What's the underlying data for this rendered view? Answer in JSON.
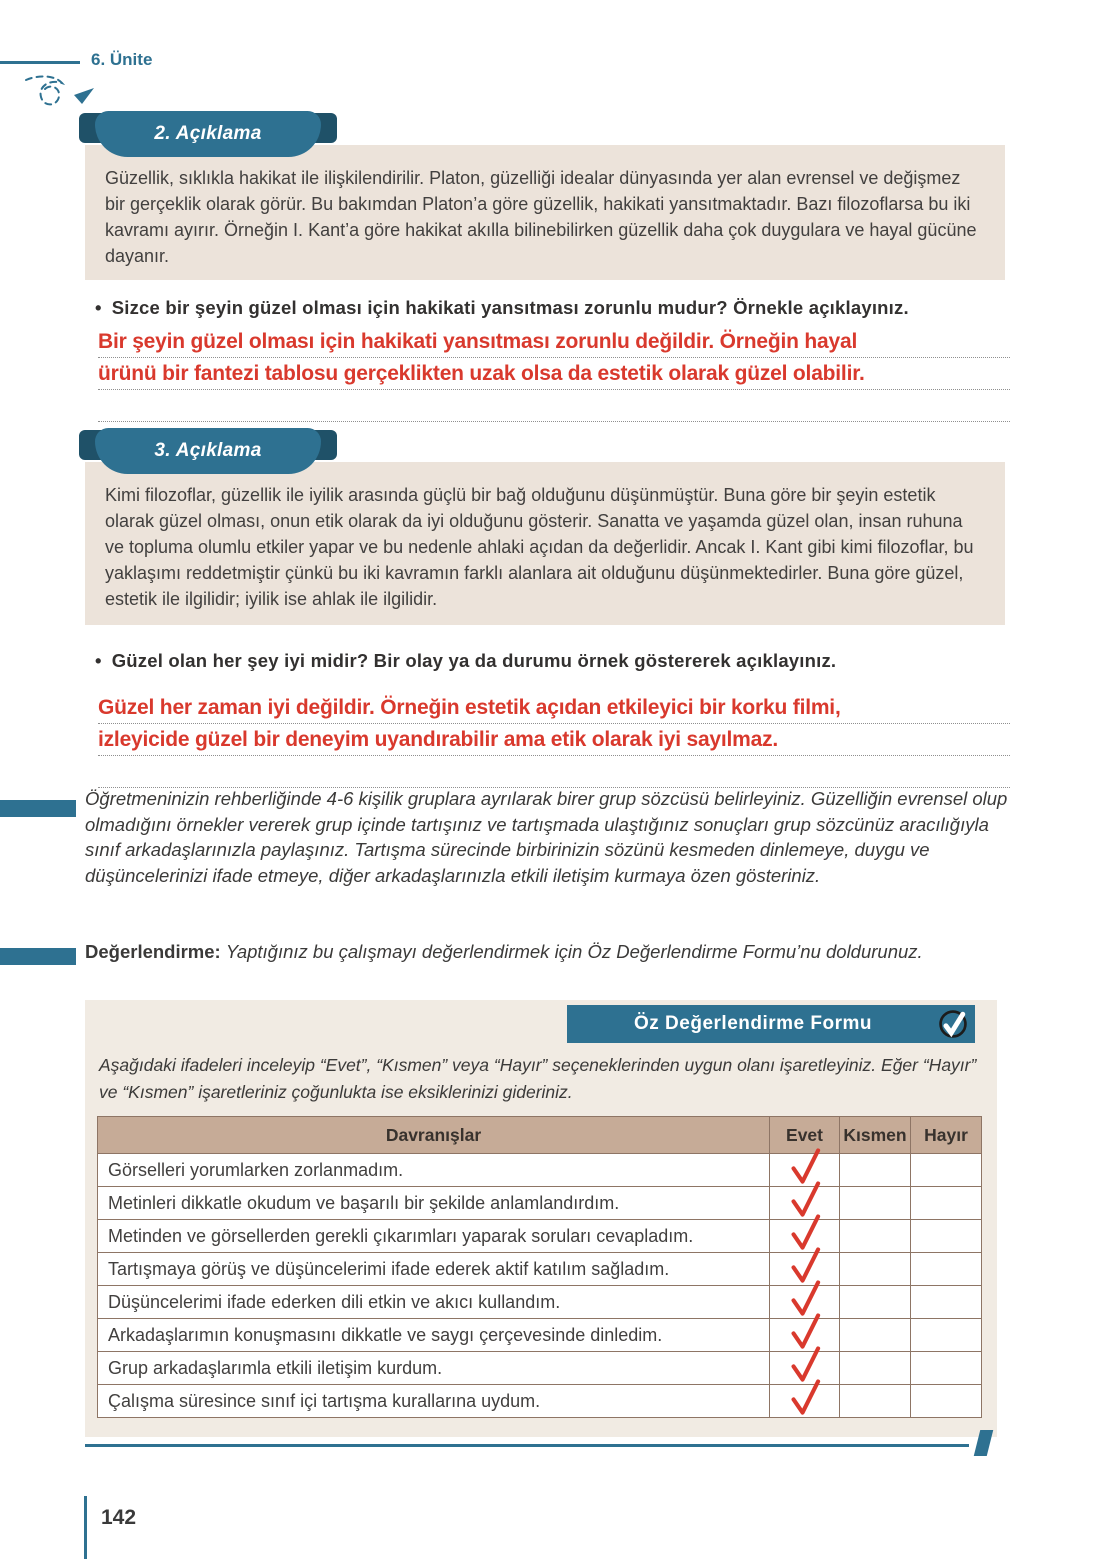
{
  "header": {
    "unit_label": "6. Ünite"
  },
  "colors": {
    "teal": "#2e7191",
    "teal_dark": "#1f5168",
    "box_beige": "#ece3da",
    "form_beige": "#f1ebe3",
    "table_header_bg": "#c6ab97",
    "table_border": "#8e7565",
    "answer_red": "#d9392d"
  },
  "icons": {
    "header_arrow": "doodle-arrow-icon",
    "form_banner": "check-circle-icon",
    "table_mark": "checkmark-icon"
  },
  "sections": [
    {
      "badge": "2. Açıklama",
      "paragraph": "Güzellik, sıklıkla hakikat ile ilişkilendirilir. Platon, güzelliği idealar dünyasında yer alan evrensel ve değişmez bir gerçeklik olarak görür. Bu bakımdan Platon’a göre güzellik, hakikati yansıtmaktadır. Bazı filozoflarsa bu iki kavramı ayırır. Örneğin I. Kant’a göre hakikat akılla bilinebilirken güzellik daha çok duygulara ve hayal gücüne dayanır.",
      "question": "Sizce bir şeyin güzel olması için hakikati yansıtması zorunlu mudur? Örnekle açıklayınız.",
      "answer_lines": [
        "Bir şeyin güzel olması için hakikati yansıtması zorunlu değildir. Örneğin hayal",
        "ürünü bir fantezi tablosu gerçeklikten uzak olsa da estetik olarak güzel olabilir."
      ]
    },
    {
      "badge": "3. Açıklama",
      "paragraph": "Kimi filozoflar, güzellik ile iyilik arasında güçlü bir bağ olduğunu düşünmüştür. Buna göre bir şeyin estetik olarak güzel olması, onun etik olarak da iyi olduğunu gösterir. Sanatta ve yaşamda güzel olan, insan ruhuna ve topluma olumlu etkiler yapar ve bu nedenle ahlaki açıdan da değerlidir. Ancak I. Kant gibi kimi filozoflar, bu yaklaşımı reddetmiştir çünkü bu iki kavramın farklı alanlara ait olduğunu düşünmektedirler. Buna göre güzel, estetik ile ilgilidir; iyilik ise ahlak ile ilgilidir.",
      "question": "Güzel olan her şey iyi midir? Bir olay ya da durumu örnek göstererek açıklayınız.",
      "answer_lines": [
        "Güzel her zaman iyi değildir. Örneğin estetik açıdan etkileyici bir korku filmi,",
        "izleyicide güzel bir deneyim uyandırabilir ama etik olarak iyi sayılmaz."
      ]
    }
  ],
  "group_activity": {
    "text": "Öğretmeninizin rehberliğinde 4-6 kişilik gruplara ayrılarak birer grup sözcüsü belirleyiniz. Güzelliğin evrensel olup olmadığını örnekler vererek grup içinde tartışınız ve tartışmada ulaştığınız sonuçları grup sözcünüz aracılığıyla sınıf arkadaşlarınızla paylaşınız. Tartışma sürecinde birbirinizin sözünü kesmeden dinlemeye, duygu ve düşüncelerinizi ifade etmeye, diğer arkadaşlarınızla etkili iletişim kurmaya özen gösteriniz."
  },
  "evaluation": {
    "label": "Değerlendirme:",
    "text": "Yaptığınız bu çalışmayı değerlendirmek için Öz Değerlendirme Formu’nu doldurunuz."
  },
  "form": {
    "title": "Öz Değerlendirme Formu",
    "instructions": "Aşağıdaki ifadeleri inceleyip “Evet”, “Kısmen” veya “Hayır” seçeneklerinden uygun olanı işaretleyiniz. Eğer “Hayır” ve “Kısmen” işaretleriniz çoğunlukta ise eksiklerinizi gideriniz.",
    "table": {
      "headers": [
        "Davranışlar",
        "Evet",
        "Kısmen",
        "Hayır"
      ],
      "options": [
        "Evet",
        "Kısmen",
        "Hayır"
      ],
      "rows": [
        {
          "behavior": "Görselleri yorumlarken zorlanmadım.",
          "checked": "Evet"
        },
        {
          "behavior": "Metinleri dikkatle okudum ve başarılı bir şekilde anlamlandırdım.",
          "checked": "Evet"
        },
        {
          "behavior": "Metinden ve görsellerden gerekli çıkarımları yaparak soruları cevapladım.",
          "checked": "Evet"
        },
        {
          "behavior": "Tartışmaya görüş ve düşüncelerimi ifade ederek aktif katılım sağladım.",
          "checked": "Evet"
        },
        {
          "behavior": "Düşüncelerimi ifade ederken dili etkin ve akıcı kullandım.",
          "checked": "Evet"
        },
        {
          "behavior": "Arkadaşlarımın konuşmasını dikkatle ve saygı çerçevesinde dinledim.",
          "checked": "Evet"
        },
        {
          "behavior": "Grup arkadaşlarımla etkili iletişim kurdum.",
          "checked": "Evet"
        },
        {
          "behavior": "Çalışma süresince sınıf içi tartışma kurallarına uydum.",
          "checked": "Evet"
        }
      ]
    }
  },
  "footer": {
    "page_number": "142"
  }
}
